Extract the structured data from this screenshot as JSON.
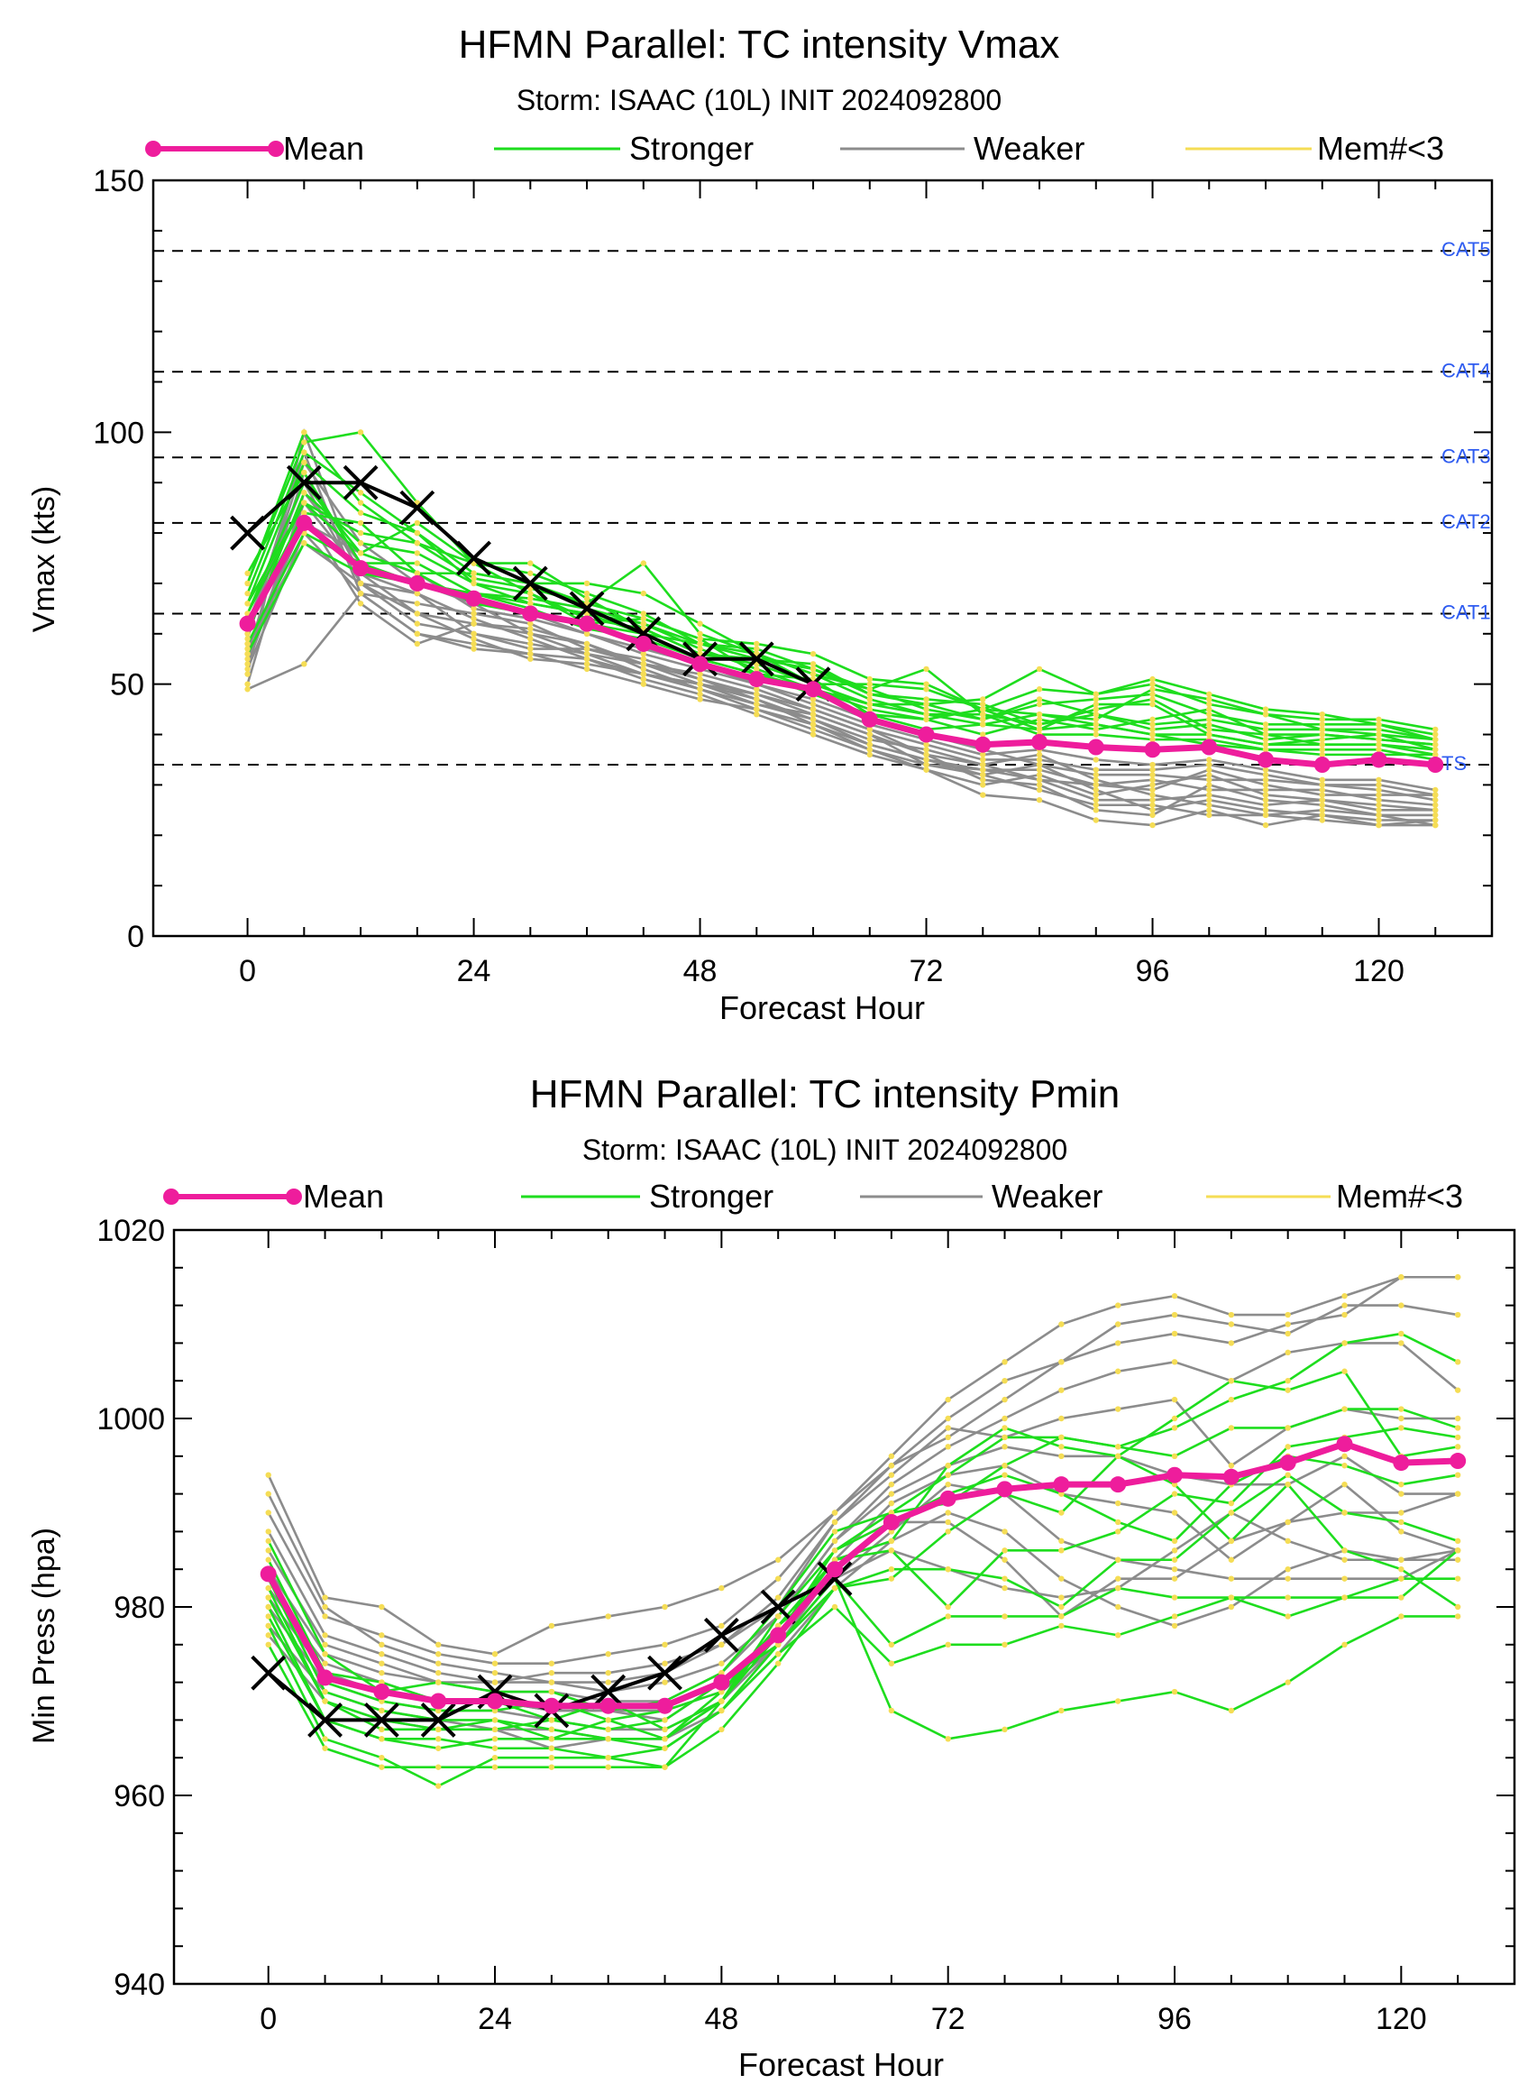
{
  "colors": {
    "mean": "#ee1d9c",
    "stronger": "#1edd1e",
    "weaker": "#8c8c8c",
    "small": "#f5dd55",
    "obs": "#000000",
    "category_label": "#2f5cf0"
  },
  "legend": [
    {
      "key": "mean",
      "label": "Mean"
    },
    {
      "key": "stronger",
      "label": "Stronger"
    },
    {
      "key": "weaker",
      "label": "Weaker"
    },
    {
      "key": "small",
      "label": "Mem#<3"
    }
  ],
  "chart_data": [
    {
      "type": "line",
      "title": "HFMN Parallel: TC intensity Vmax",
      "subtitle": "Storm: ISAAC (10L) INIT 2024092800",
      "xlabel": "Forecast Hour",
      "ylabel": "Vmax (kts)",
      "xlim": [
        -10,
        132
      ],
      "ylim": [
        0,
        150
      ],
      "xticks": [
        0,
        24,
        48,
        72,
        96,
        120
      ],
      "yticks": [
        0,
        50,
        100,
        150
      ],
      "grid": false,
      "legend_position": "top",
      "reference_lines": [
        {
          "label": "TS",
          "value": 34
        },
        {
          "label": "CAT1",
          "value": 64
        },
        {
          "label": "CAT2",
          "value": 82
        },
        {
          "label": "CAT3",
          "value": 95
        },
        {
          "label": "CAT4",
          "value": 112
        },
        {
          "label": "CAT5",
          "value": 136
        }
      ],
      "mean": {
        "x": [
          0,
          6,
          12,
          18,
          24,
          30,
          36,
          42,
          48,
          54,
          60,
          66,
          72,
          78,
          84,
          90,
          96,
          102,
          108,
          114,
          120,
          126
        ],
        "y": [
          62,
          82,
          73,
          70,
          67,
          64,
          62,
          58,
          54,
          51,
          49,
          43,
          40,
          38,
          38.5,
          37.5,
          37,
          37.5,
          35,
          34,
          35,
          34
        ]
      },
      "observed": {
        "x": [
          0,
          6,
          12,
          18,
          24,
          30,
          36,
          42,
          48,
          54,
          60
        ],
        "y": [
          80,
          90,
          90,
          85,
          75,
          70,
          65,
          60,
          55,
          55,
          50
        ]
      },
      "stronger_members": [
        [
          68,
          96,
          88,
          80,
          70,
          68,
          62,
          60,
          55,
          52,
          48,
          44,
          41,
          42,
          44,
          42,
          40,
          40,
          38,
          38,
          38,
          37
        ],
        [
          70,
          98,
          100,
          86,
          74,
          72,
          68,
          64,
          58,
          55,
          53,
          48,
          46,
          43,
          46,
          47,
          48,
          44,
          42,
          42,
          42,
          40
        ],
        [
          64,
          90,
          76,
          72,
          72,
          70,
          66,
          74,
          60,
          56,
          52,
          47,
          44,
          44,
          42,
          44,
          41,
          42,
          39,
          40,
          39,
          38
        ],
        [
          60,
          88,
          78,
          76,
          70,
          66,
          64,
          60,
          58,
          56,
          50,
          50,
          49,
          45,
          49,
          48,
          50,
          46,
          44,
          43,
          43,
          41
        ],
        [
          66,
          86,
          80,
          78,
          74,
          68,
          63,
          61,
          56,
          54,
          50,
          46,
          46,
          47,
          53,
          48,
          51,
          48,
          45,
          44,
          42,
          39
        ],
        [
          58,
          80,
          74,
          74,
          68,
          66,
          64,
          62,
          57,
          53,
          49,
          45,
          43,
          40,
          43,
          41,
          43,
          45,
          40,
          38,
          38,
          36
        ],
        [
          62,
          84,
          82,
          72,
          66,
          64,
          62,
          63,
          59,
          52,
          51,
          44,
          43,
          45,
          41,
          46,
          46,
          40,
          38,
          39,
          40,
          37
        ],
        [
          72,
          92,
          74,
          70,
          68,
          67,
          65,
          62,
          58,
          57,
          53,
          49,
          53,
          44,
          40,
          40,
          39,
          39,
          37,
          36,
          36,
          36
        ],
        [
          66,
          94,
          84,
          80,
          72,
          70,
          70,
          68,
          62,
          56,
          52,
          49,
          45,
          43,
          47,
          44,
          42,
          43,
          41,
          41,
          41,
          39
        ],
        [
          64,
          86,
          76,
          82,
          74,
          74,
          67,
          61,
          56,
          55,
          54,
          48,
          47,
          46,
          42,
          45,
          47,
          41,
          40,
          40,
          39,
          38
        ],
        [
          70,
          100,
          86,
          78,
          71,
          69,
          66,
          63,
          59,
          58,
          56,
          51,
          50,
          45,
          44,
          43,
          49,
          47,
          44,
          41,
          40,
          39
        ],
        [
          56,
          78,
          72,
          70,
          68,
          65,
          61,
          59,
          55,
          52,
          49,
          46,
          44,
          42,
          41,
          42,
          40,
          38,
          37,
          37,
          37,
          35
        ]
      ],
      "weaker_members": [
        [
          49,
          54,
          68,
          60,
          58,
          56,
          55,
          52,
          49,
          46,
          44,
          40,
          34,
          33,
          31,
          30,
          29,
          33,
          30,
          28,
          28,
          28
        ],
        [
          52,
          100,
          70,
          64,
          62,
          60,
          58,
          54,
          51,
          48,
          45,
          41,
          36,
          31,
          30,
          25,
          24,
          30,
          27,
          26,
          24,
          24
        ],
        [
          56,
          92,
          72,
          68,
          60,
          58,
          56,
          52,
          50,
          47,
          42,
          37,
          34,
          32,
          34,
          29,
          25,
          27,
          25,
          24,
          23,
          23
        ],
        [
          58,
          78,
          70,
          62,
          60,
          57,
          57,
          54,
          50,
          46,
          43,
          39,
          37,
          34,
          36,
          31,
          28,
          26,
          24,
          25,
          24,
          22
        ],
        [
          54,
          84,
          66,
          58,
          62,
          61,
          58,
          53,
          49,
          45,
          41,
          37,
          33,
          30,
          32,
          28,
          30,
          32,
          28,
          27,
          26,
          25
        ],
        [
          60,
          96,
          68,
          66,
          64,
          62,
          57,
          55,
          51,
          47,
          43,
          38,
          35,
          33,
          33,
          30,
          31,
          29,
          29,
          29,
          27,
          26
        ],
        [
          50,
          88,
          74,
          70,
          66,
          60,
          56,
          54,
          52,
          49,
          45,
          41,
          38,
          35,
          35,
          33,
          33,
          34,
          32,
          30,
          29,
          27
        ],
        [
          62,
          90,
          70,
          68,
          63,
          59,
          55,
          51,
          48,
          44,
          40,
          36,
          33,
          28,
          27,
          23,
          22,
          25,
          22,
          24,
          22,
          23
        ],
        [
          57,
          82,
          76,
          72,
          65,
          63,
          60,
          56,
          53,
          50,
          46,
          42,
          39,
          36,
          37,
          35,
          34,
          35,
          33,
          31,
          31,
          29
        ],
        [
          55,
          86,
          72,
          64,
          59,
          55,
          54,
          52,
          50,
          48,
          44,
          40,
          36,
          34,
          31,
          27,
          27,
          28,
          26,
          27,
          25,
          25
        ],
        [
          59,
          94,
          78,
          70,
          67,
          64,
          60,
          57,
          54,
          50,
          47,
          43,
          40,
          37,
          34,
          32,
          32,
          31,
          31,
          30,
          30,
          28
        ],
        [
          53,
          80,
          68,
          60,
          57,
          56,
          53,
          50,
          47,
          45,
          42,
          38,
          35,
          32,
          29,
          26,
          26,
          24,
          24,
          23,
          22,
          22
        ]
      ]
    },
    {
      "type": "line",
      "title": "HFMN Parallel: TC intensity Pmin",
      "subtitle": "Storm: ISAAC (10L) INIT 2024092800",
      "xlabel": "Forecast Hour",
      "ylabel": "Min Press (hpa)",
      "xlim": [
        -10,
        132
      ],
      "ylim": [
        940,
        1020
      ],
      "xticks": [
        0,
        24,
        48,
        72,
        96,
        120
      ],
      "yticks": [
        940,
        960,
        980,
        1000,
        1020
      ],
      "grid": false,
      "legend_position": "top",
      "mean": {
        "x": [
          0,
          6,
          12,
          18,
          24,
          30,
          36,
          42,
          48,
          54,
          60,
          66,
          72,
          78,
          84,
          90,
          96,
          102,
          108,
          114,
          120,
          126
        ],
        "y": [
          983.5,
          972.5,
          971,
          970,
          970,
          969.5,
          969.5,
          969.5,
          972,
          977,
          984,
          989,
          991.5,
          992.5,
          993,
          993,
          994,
          993.8,
          995.3,
          997.3,
          995.3,
          995.5
        ]
      },
      "observed": {
        "x": [
          0,
          6,
          12,
          18,
          24,
          30,
          36,
          42,
          48,
          54,
          60
        ],
        "y": [
          973,
          968,
          968,
          968,
          971,
          969,
          971,
          973,
          977,
          980,
          983
        ]
      },
      "stronger_members": [
        [
          978,
          966,
          964,
          961,
          964,
          964,
          964,
          963,
          970,
          978,
          983,
          969,
          966,
          967,
          969,
          970,
          971,
          969,
          972,
          976,
          979,
          979
        ],
        [
          980,
          968,
          966,
          965,
          966,
          966,
          966,
          965,
          969,
          975,
          980,
          974,
          976,
          976,
          978,
          977,
          979,
          981,
          979,
          981,
          983,
          983
        ],
        [
          982,
          970,
          968,
          967,
          967,
          968,
          967,
          968,
          972,
          976,
          983,
          976,
          979,
          979,
          979,
          982,
          981,
          981,
          981,
          981,
          981,
          986
        ],
        [
          976,
          965,
          963,
          963,
          963,
          963,
          963,
          963,
          967,
          974,
          982,
          984,
          984,
          983,
          980,
          985,
          985,
          990,
          994,
          990,
          989,
          987
        ],
        [
          984,
          972,
          970,
          969,
          969,
          970,
          968,
          969,
          971,
          978,
          985,
          986,
          980,
          986,
          986,
          988,
          992,
          991,
          997,
          998,
          999,
          998
        ],
        [
          985,
          973,
          972,
          970,
          970,
          968,
          970,
          967,
          970,
          979,
          986,
          990,
          991,
          995,
          998,
          997,
          996,
          999,
          999,
          1001,
          1001,
          999
        ],
        [
          987,
          975,
          971,
          972,
          971,
          971,
          969,
          970,
          973,
          980,
          988,
          990,
          994,
          998,
          998,
          997,
          999,
          1002,
          1004,
          1008,
          1009,
          1006
        ],
        [
          981,
          970,
          967,
          967,
          968,
          967,
          966,
          966,
          970,
          977,
          985,
          987,
          995,
          999,
          997,
          996,
          1000,
          1004,
          1003,
          1005,
          996,
          997
        ],
        [
          979,
          968,
          966,
          966,
          965,
          965,
          964,
          965,
          969,
          976,
          982,
          983,
          988,
          992,
          990,
          996,
          993,
          987,
          993,
          986,
          984,
          980
        ],
        [
          983,
          971,
          969,
          968,
          968,
          966,
          968,
          966,
          971,
          977,
          986,
          989,
          992,
          994,
          992,
          989,
          987,
          993,
          996,
          995,
          993,
          994
        ]
      ],
      "weaker_members": [
        [
          994,
          981,
          980,
          976,
          975,
          978,
          979,
          980,
          982,
          985,
          990,
          996,
          1002,
          1006,
          1010,
          1012,
          1013,
          1011,
          1011,
          1013,
          1015,
          1015
        ],
        [
          990,
          979,
          977,
          975,
          974,
          974,
          975,
          976,
          978,
          983,
          990,
          995,
          1000,
          1004,
          1006,
          1010,
          1011,
          1010,
          1009,
          1012,
          1012,
          1011
        ],
        [
          988,
          977,
          975,
          973,
          972,
          973,
          973,
          974,
          976,
          981,
          989,
          995,
          998,
          1002,
          1006,
          1008,
          1009,
          1008,
          1010,
          1011,
          1015,
          1015
        ],
        [
          986,
          976,
          974,
          972,
          972,
          972,
          971,
          972,
          974,
          979,
          987,
          993,
          997,
          1000,
          1003,
          1005,
          1006,
          1004,
          1007,
          1008,
          1008,
          1003
        ],
        [
          992,
          980,
          976,
          974,
          973,
          972,
          972,
          973,
          976,
          980,
          989,
          994,
          999,
          998,
          1000,
          1001,
          1002,
          995,
          999,
          1001,
          1000,
          1000
        ],
        [
          984,
          975,
          973,
          972,
          971,
          971,
          970,
          970,
          973,
          979,
          987,
          992,
          995,
          997,
          996,
          996,
          994,
          993,
          993,
          996,
          992,
          992
        ],
        [
          982,
          974,
          972,
          970,
          970,
          969,
          969,
          968,
          972,
          977,
          985,
          991,
          994,
          995,
          992,
          991,
          990,
          985,
          989,
          993,
          988,
          986
        ],
        [
          980,
          972,
          970,
          969,
          969,
          968,
          967,
          967,
          970,
          976,
          983,
          988,
          993,
          992,
          987,
          985,
          984,
          983,
          983,
          983,
          983,
          986
        ],
        [
          978,
          971,
          969,
          968,
          967,
          967,
          966,
          966,
          969,
          975,
          982,
          987,
          990,
          988,
          983,
          980,
          978,
          980,
          984,
          986,
          985,
          985
        ],
        [
          981,
          973,
          971,
          970,
          970,
          969,
          969,
          969,
          971,
          976,
          984,
          989,
          989,
          985,
          979,
          983,
          983,
          987,
          989,
          990,
          990,
          992
        ],
        [
          977,
          970,
          968,
          967,
          967,
          965,
          966,
          966,
          970,
          976,
          983,
          986,
          984,
          982,
          981,
          982,
          986,
          990,
          987,
          985,
          985,
          986
        ]
      ]
    }
  ]
}
